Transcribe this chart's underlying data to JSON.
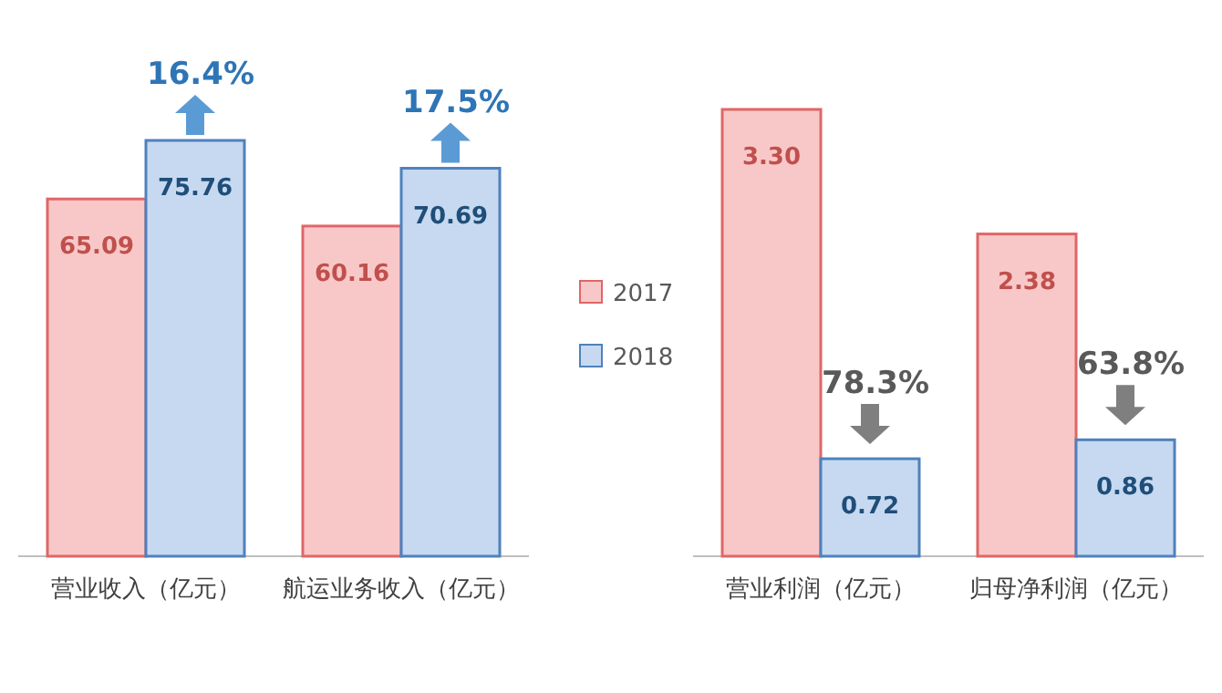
{
  "chart_data": [
    {
      "type": "bar",
      "categories": [
        "营业收入（亿元）",
        "航运业务收入（亿元）"
      ],
      "series": [
        {
          "name": "2017",
          "color": "#f8c8c8",
          "values": [
            65.09,
            60.16
          ],
          "value_labels": [
            "65.09",
            "60.16"
          ]
        },
        {
          "name": "2018",
          "color": "#c6d9f0",
          "values": [
            75.76,
            70.69
          ],
          "value_labels": [
            "75.76",
            "70.69"
          ]
        }
      ],
      "legend": "right",
      "annotations": [
        "16.4%",
        "17.5%"
      ]
    },
    {
      "type": "bar",
      "categories": [
        "营业利润（亿元）",
        "归母净利润（亿元）"
      ],
      "series": [
        {
          "color": "#f8c8c8",
          "values": [
            3.3,
            2.38
          ],
          "value_labels": [
            "3.30",
            "2.38"
          ]
        },
        {
          "color": "#c6d9f0",
          "values": [
            0.72,
            0.86
          ],
          "value_labels": [
            "0.72",
            "0.86"
          ]
        }
      ],
      "annotations": [
        "78.3%",
        "63.8%"
      ]
    }
  ]
}
